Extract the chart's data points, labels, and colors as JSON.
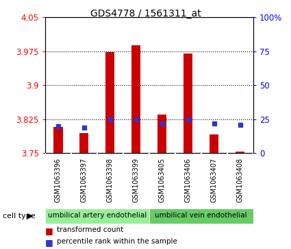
{
  "title": "GDS4778 / 1561311_at",
  "samples": [
    "GSM1063396",
    "GSM1063397",
    "GSM1063398",
    "GSM1063399",
    "GSM1063405",
    "GSM1063406",
    "GSM1063407",
    "GSM1063408"
  ],
  "red_values": [
    3.808,
    3.795,
    3.973,
    3.988,
    3.835,
    3.971,
    3.792,
    3.753
  ],
  "blue_values_pct": [
    20,
    19,
    25,
    25,
    22,
    25,
    22,
    21
  ],
  "ylim": [
    3.75,
    4.05
  ],
  "yticks": [
    3.75,
    3.825,
    3.9,
    3.975,
    4.05
  ],
  "y2lim": [
    0,
    100
  ],
  "y2ticks": [
    0,
    25,
    50,
    75,
    100
  ],
  "y2ticklabels": [
    "0",
    "25",
    "50",
    "75",
    "100%"
  ],
  "group1_label": "umbilical artery endothelial",
  "group2_label": "umbilical vein endothelial",
  "group1_indices": [
    0,
    1,
    2,
    3
  ],
  "group2_indices": [
    4,
    5,
    6,
    7
  ],
  "cell_type_label": "cell type",
  "legend_red": "transformed count",
  "legend_blue": "percentile rank within the sample",
  "bar_color": "#cc0000",
  "dot_color": "#3333cc",
  "group1_color": "#99ee99",
  "group2_color": "#66cc66",
  "xtick_bg": "#cccccc",
  "plot_bg": "#ffffff",
  "base_value": 3.75,
  "bar_width": 0.35
}
